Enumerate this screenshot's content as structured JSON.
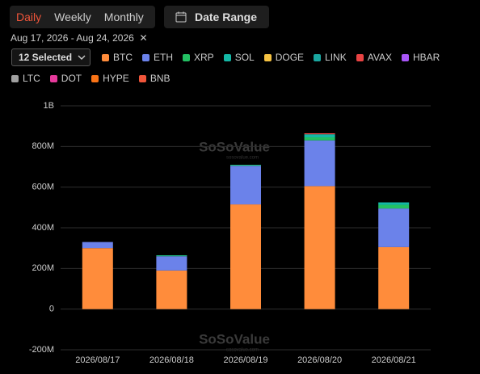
{
  "ui": {
    "tabs": [
      "Daily",
      "Weekly",
      "Monthly"
    ],
    "date_range_button": "Date Range",
    "date_range": "Aug 17, 2026 - Aug 24, 2026",
    "selector": "12 Selected"
  },
  "chart_data": {
    "type": "bar",
    "stacked": true,
    "watermark": "SoSoValue",
    "watermark_url": "sosovalue.com",
    "categories": [
      "2026/08/17",
      "2026/08/18",
      "2026/08/19",
      "2026/08/20",
      "2026/08/21"
    ],
    "series": [
      {
        "name": "BTC",
        "color": "#ff8c3b",
        "values": [
          300000000,
          190000000,
          515000000,
          605000000,
          305000000
        ]
      },
      {
        "name": "ETH",
        "color": "#6b82ea",
        "values": [
          30000000,
          70000000,
          190000000,
          225000000,
          190000000
        ]
      },
      {
        "name": "XRP",
        "color": "#23c063",
        "values": [
          0,
          3000000,
          3000000,
          15000000,
          18000000
        ]
      },
      {
        "name": "SOL",
        "color": "#14b8a6",
        "values": [
          0,
          2000000,
          2000000,
          15000000,
          12000000
        ]
      },
      {
        "name": "DOGE",
        "color": "#f5c242",
        "values": [
          0,
          0,
          0,
          0,
          0
        ]
      },
      {
        "name": "LINK",
        "color": "#1aa6a0",
        "values": [
          0,
          0,
          0,
          0,
          0
        ]
      },
      {
        "name": "AVAX",
        "color": "#e94343",
        "values": [
          0,
          0,
          0,
          5000000,
          0
        ]
      },
      {
        "name": "HBAR",
        "color": "#a855f7",
        "values": [
          0,
          0,
          0,
          0,
          0
        ]
      },
      {
        "name": "LTC",
        "color": "#a0a0a0",
        "values": [
          0,
          0,
          0,
          0,
          0
        ]
      },
      {
        "name": "DOT",
        "color": "#e6399b",
        "values": [
          0,
          0,
          0,
          0,
          0
        ]
      },
      {
        "name": "HYPE",
        "color": "#f97316",
        "values": [
          0,
          0,
          0,
          0,
          0
        ]
      },
      {
        "name": "BNB",
        "color": "#f0553a",
        "values": [
          0,
          0,
          0,
          0,
          0
        ]
      }
    ],
    "ylim": [
      -200000000,
      1000000000
    ],
    "yticks": [
      {
        "value": -200000000,
        "label": "-200M"
      },
      0,
      {
        "value": 200000000,
        "label": "200M"
      },
      {
        "value": 400000000,
        "label": "400M"
      },
      {
        "value": 600000000,
        "label": "600M"
      },
      {
        "value": 800000000,
        "label": "800M"
      },
      {
        "value": 1000000000,
        "label": "1B"
      }
    ],
    "grid": true
  }
}
